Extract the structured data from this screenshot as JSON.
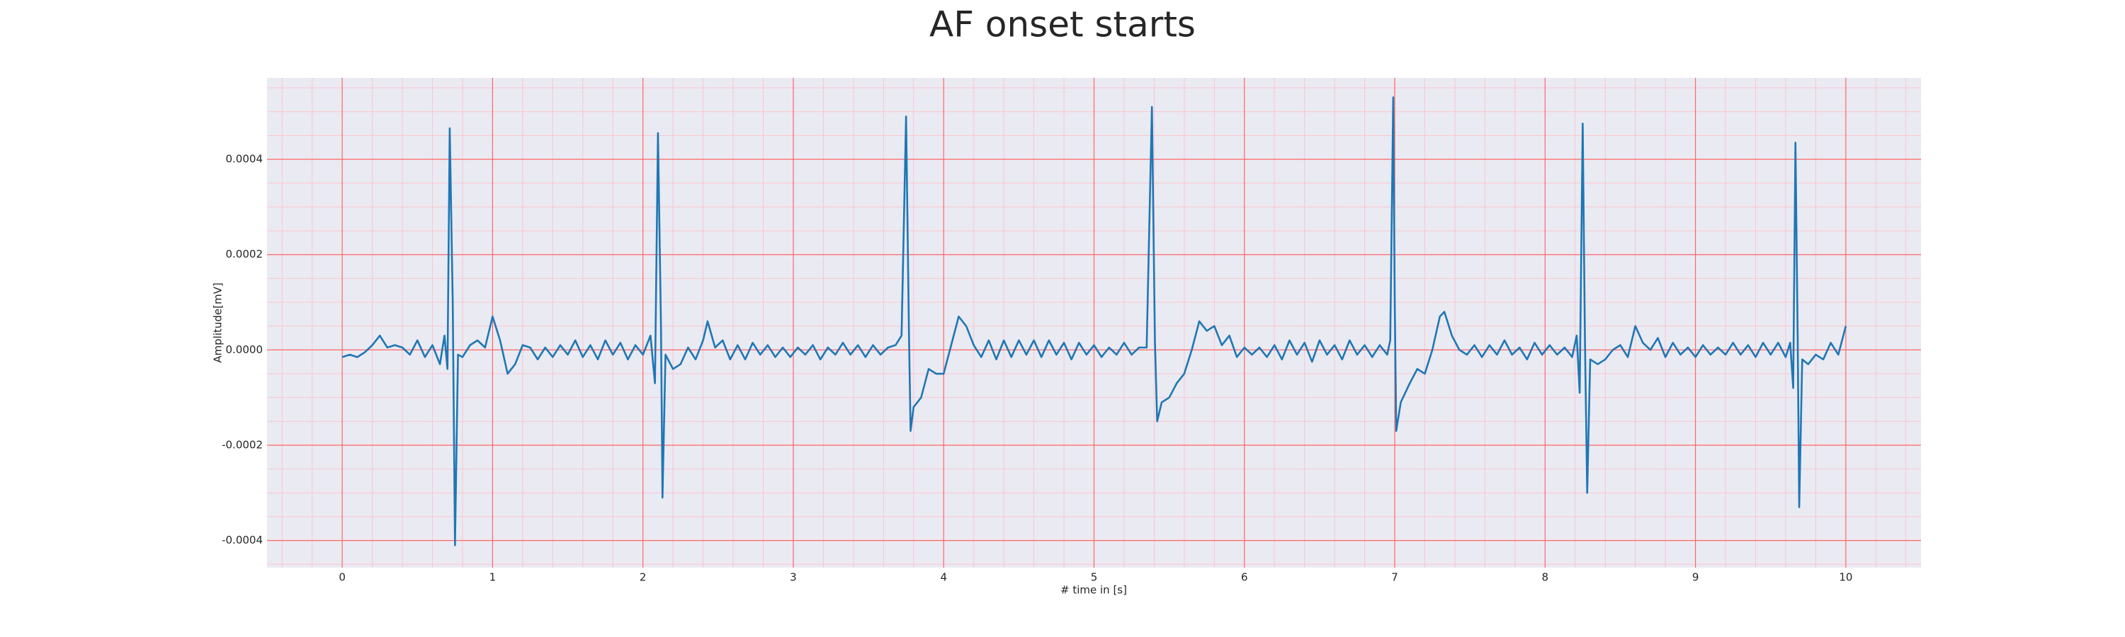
{
  "chart_data": {
    "type": "line",
    "title": "AF onset starts",
    "xlabel": "# time in [s]",
    "ylabel": "Amplitude[mV]",
    "x": [
      0,
      0.05,
      0.1,
      0.15,
      0.2,
      0.25,
      0.3,
      0.35,
      0.4,
      0.45,
      0.5,
      0.55,
      0.6,
      0.65,
      0.68,
      0.7,
      0.715,
      0.735,
      0.75,
      0.77,
      0.8,
      0.85,
      0.9,
      0.95,
      1.0,
      1.05,
      1.1,
      1.15,
      1.2,
      1.25,
      1.3,
      1.35,
      1.4,
      1.45,
      1.5,
      1.55,
      1.6,
      1.65,
      1.7,
      1.75,
      1.8,
      1.85,
      1.9,
      1.95,
      2.0,
      2.05,
      2.08,
      2.1,
      2.12,
      2.13,
      2.15,
      2.2,
      2.25,
      2.3,
      2.35,
      2.4,
      2.43,
      2.48,
      2.53,
      2.58,
      2.63,
      2.68,
      2.73,
      2.78,
      2.83,
      2.88,
      2.93,
      2.98,
      3.03,
      3.08,
      3.13,
      3.18,
      3.23,
      3.28,
      3.33,
      3.38,
      3.43,
      3.48,
      3.53,
      3.58,
      3.63,
      3.68,
      3.72,
      3.75,
      3.77,
      3.78,
      3.8,
      3.85,
      3.9,
      3.95,
      4.0,
      4.05,
      4.1,
      4.15,
      4.2,
      4.25,
      4.3,
      4.35,
      4.4,
      4.45,
      4.5,
      4.55,
      4.6,
      4.65,
      4.7,
      4.75,
      4.8,
      4.85,
      4.9,
      4.95,
      5.0,
      5.05,
      5.1,
      5.15,
      5.2,
      5.25,
      5.3,
      5.35,
      5.385,
      5.405,
      5.42,
      5.45,
      5.5,
      5.55,
      5.6,
      5.65,
      5.7,
      5.75,
      5.8,
      5.85,
      5.9,
      5.95,
      6.0,
      6.05,
      6.1,
      6.15,
      6.2,
      6.25,
      6.3,
      6.35,
      6.4,
      6.45,
      6.5,
      6.55,
      6.6,
      6.65,
      6.7,
      6.75,
      6.8,
      6.85,
      6.9,
      6.95,
      6.97,
      6.99,
      7.0,
      7.01,
      7.04,
      7.1,
      7.15,
      7.2,
      7.25,
      7.3,
      7.33,
      7.38,
      7.43,
      7.48,
      7.53,
      7.58,
      7.63,
      7.68,
      7.73,
      7.78,
      7.83,
      7.88,
      7.93,
      7.98,
      8.03,
      8.08,
      8.13,
      8.18,
      8.21,
      8.23,
      8.25,
      8.265,
      8.28,
      8.3,
      8.35,
      8.4,
      8.45,
      8.5,
      8.55,
      8.6,
      8.65,
      8.7,
      8.75,
      8.8,
      8.85,
      8.9,
      8.95,
      9.0,
      9.05,
      9.1,
      9.15,
      9.2,
      9.25,
      9.3,
      9.35,
      9.4,
      9.45,
      9.5,
      9.55,
      9.6,
      9.63,
      9.65,
      9.665,
      9.68,
      9.69,
      9.71,
      9.75,
      9.8,
      9.85,
      9.9,
      9.95,
      10.0
    ],
    "values": [
      -1.5e-05,
      -1e-05,
      -1.5e-05,
      -5e-06,
      1e-05,
      3e-05,
      5e-06,
      1e-05,
      5e-06,
      -1e-05,
      2e-05,
      -1.5e-05,
      1e-05,
      -3e-05,
      3e-05,
      -4e-05,
      0.000465,
      0.0001,
      -0.00041,
      -1e-05,
      -1.5e-05,
      1e-05,
      2e-05,
      5e-06,
      7e-05,
      2e-05,
      -5e-05,
      -3e-05,
      1e-05,
      5e-06,
      -2e-05,
      5e-06,
      -1.5e-05,
      1e-05,
      -1e-05,
      2e-05,
      -1.5e-05,
      1e-05,
      -2e-05,
      2e-05,
      -1e-05,
      1.5e-05,
      -2e-05,
      1e-05,
      -1e-05,
      3e-05,
      -7e-05,
      0.000455,
      5e-05,
      -0.00031,
      -1e-05,
      -4e-05,
      -3e-05,
      5e-06,
      -2e-05,
      2e-05,
      6e-05,
      5e-06,
      2e-05,
      -2e-05,
      1e-05,
      -2e-05,
      1.5e-05,
      -1e-05,
      1e-05,
      -1.5e-05,
      5e-06,
      -1.5e-05,
      5e-06,
      -1e-05,
      1e-05,
      -2e-05,
      5e-06,
      -1e-05,
      1.5e-05,
      -1e-05,
      1e-05,
      -1.5e-05,
      1e-05,
      -1e-05,
      5e-06,
      1e-05,
      3e-05,
      0.00049,
      2e-05,
      -0.00017,
      -0.00012,
      -0.0001,
      -4e-05,
      -5e-05,
      -5e-05,
      1e-05,
      7e-05,
      5e-05,
      1e-05,
      -1.5e-05,
      2e-05,
      -2e-05,
      2e-05,
      -1.5e-05,
      2e-05,
      -1e-05,
      2e-05,
      -1.5e-05,
      2e-05,
      -1e-05,
      1.5e-05,
      -2e-05,
      1.5e-05,
      -1e-05,
      1e-05,
      -1.5e-05,
      5e-06,
      -1e-05,
      1.5e-05,
      -1e-05,
      5e-06,
      5e-06,
      0.00051,
      2e-05,
      -0.00015,
      -0.00011,
      -0.0001,
      -7e-05,
      -5e-05,
      0,
      6e-05,
      4e-05,
      5e-05,
      1e-05,
      3e-05,
      -1.5e-05,
      5e-06,
      -1e-05,
      5e-06,
      -1.5e-05,
      1e-05,
      -2e-05,
      2e-05,
      -1e-05,
      1.5e-05,
      -2.5e-05,
      2e-05,
      -1e-05,
      1e-05,
      -2e-05,
      2e-05,
      -1e-05,
      1e-05,
      -1.5e-05,
      1e-05,
      -1e-05,
      2e-05,
      0.00053,
      0.0001,
      -0.00017,
      -0.00011,
      -7e-05,
      -4e-05,
      -5e-05,
      0,
      7e-05,
      8e-05,
      3e-05,
      0,
      -1e-05,
      1e-05,
      -1.5e-05,
      1e-05,
      -1e-05,
      2e-05,
      -1e-05,
      5e-06,
      -2e-05,
      1.5e-05,
      -1e-05,
      1e-05,
      -1e-05,
      5e-06,
      -1.5e-05,
      3e-05,
      -9e-05,
      0.000475,
      2e-05,
      -0.0003,
      -2e-05,
      -3e-05,
      -2e-05,
      0,
      1e-05,
      -1.5e-05,
      5e-05,
      1.5e-05,
      0,
      2.5e-05,
      -1.5e-05,
      1.5e-05,
      -1e-05,
      5e-06,
      -1.5e-05,
      1e-05,
      -1e-05,
      5e-06,
      -1e-05,
      1.5e-05,
      -1e-05,
      1e-05,
      -1.5e-05,
      1.5e-05,
      -1e-05,
      1.5e-05,
      -1.5e-05,
      1.5e-05,
      -8e-05,
      0.000435,
      2e-05,
      -0.00033,
      -2e-05,
      -3e-05,
      -1e-05,
      -2e-05,
      1.5e-05,
      -1e-05,
      5e-05
    ],
    "color": "#1f77b4",
    "xlim": [
      -0.5,
      10.5
    ],
    "xticks": [
      0,
      1,
      2,
      3,
      4,
      5,
      6,
      7,
      8,
      9,
      10
    ],
    "ylim": [
      -0.000457,
      0.000571
    ],
    "yticks": [
      -0.0004,
      -0.0002,
      {
        "value": 0,
        "label": "0.0000"
      },
      0.0002,
      0.0004
    ],
    "grid": true,
    "grid_color": "#ff6666",
    "minor_grid_color": "#f9c6d0",
    "background": "#eaeaf2",
    "xticks_minor": [
      -0.4,
      -0.2,
      0.2,
      0.4,
      0.6,
      0.8,
      1.2,
      1.4,
      1.6,
      1.8,
      2.2,
      2.4,
      2.6,
      2.8,
      3.2,
      3.4,
      3.6,
      3.8,
      4.2,
      4.4,
      4.6,
      4.8,
      5.2,
      5.4,
      5.6,
      5.8,
      6.2,
      6.4,
      6.6,
      6.8,
      7.2,
      7.4,
      7.6,
      7.8,
      8.2,
      8.4,
      8.6,
      8.8,
      9.2,
      9.4,
      9.6,
      9.8,
      10.2,
      10.4
    ],
    "yticks_minor": [
      -0.00045,
      -0.00035,
      -0.0003,
      -0.00025,
      -0.00015,
      -0.0001,
      -5e-05,
      5e-05,
      0.0001,
      0.00015,
      0.00025,
      0.0003,
      0.00035,
      0.00045,
      0.0005,
      0.00055
    ]
  }
}
